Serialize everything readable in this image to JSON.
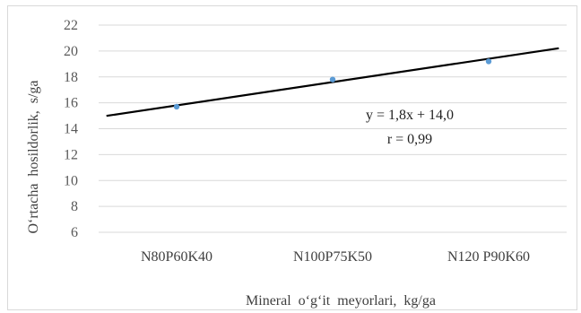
{
  "chart_data": {
    "type": "scatter",
    "categories": [
      "N80P60K40",
      "N100P75K50",
      "N120 P90K60"
    ],
    "x": [
      1,
      2,
      3
    ],
    "series": [
      {
        "values": [
          15.7,
          17.8,
          19.2
        ]
      }
    ],
    "trendline": {
      "slope": 1.8,
      "intercept": 14.0,
      "x_range": [
        0.5,
        3.5
      ]
    },
    "annotations": [
      "y = 1,8x + 14,0",
      "r = 0,99"
    ],
    "xlabel": "Mineral  o‘g‘it  meyorlari,  kg/ga",
    "ylabel": "O‘rtacha  hosildorlik,  s/ga",
    "ylim": [
      6,
      22
    ],
    "yticks": [
      6,
      8,
      10,
      12,
      14,
      16,
      18,
      20,
      22
    ],
    "grid": true,
    "colors": {
      "points": "#5b9bd5",
      "trendline": "#000000",
      "grid": "#d9d9d9"
    }
  }
}
